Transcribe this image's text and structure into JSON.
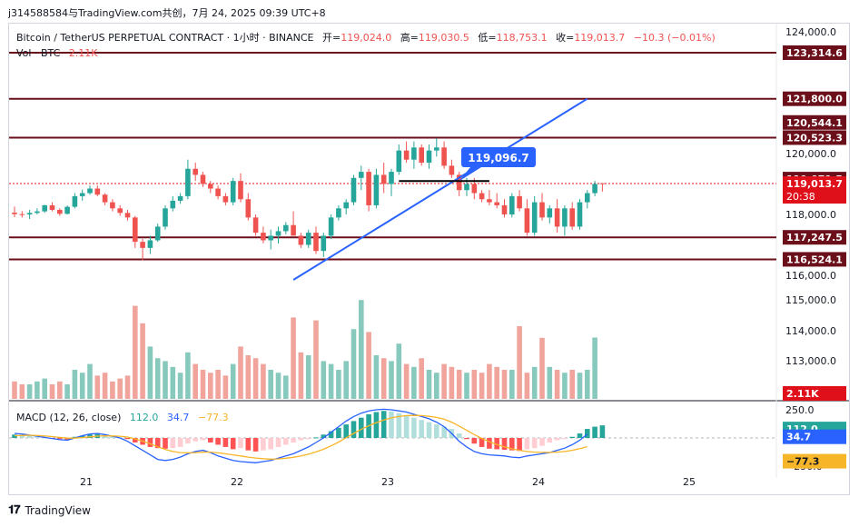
{
  "header": {
    "caption": "j314588584与TradingView.com共创，7月 24, 2025 09:39 UTC+8"
  },
  "footer": {
    "brand": "TradingView"
  },
  "legend": {
    "symbol_line": "Bitcoin / TetherUS PERPETUAL CONTRACT · 1小时 · BINANCE",
    "open_label": "开=",
    "open_value": "119,024.0",
    "high_label": "高=",
    "high_value": "119,030.5",
    "low_label": "低=",
    "low_value": "118,753.1",
    "close_label": "收=",
    "close_value": "119,013.7",
    "change": "−10.3 (−0.01%)",
    "vol_label": "Vol · BTC",
    "vol_value": "2.11K"
  },
  "macd_legend": {
    "label": "MACD (12, 26, close)",
    "hist_value": "112.0",
    "macd_value": "34.7",
    "signal_value": "−77.3"
  },
  "colors": {
    "up": "#26a69a",
    "down": "#ef5350",
    "vol_up": "#88c9be",
    "vol_down": "#f0a49c",
    "level_line": "#6b0f1a",
    "trend_line": "#2962ff",
    "macd_line": "#2962ff",
    "signal_line": "#f7b529",
    "last_price": "#e0101a",
    "callout": "#2962ff"
  },
  "chart_data": {
    "type": "candlestick",
    "title": "Bitcoin / TetherUS PERPETUAL CONTRACT · 1小时 · BINANCE",
    "timeframe": "1小时",
    "x_ticks": [
      "21",
      "22",
      "23",
      "24",
      "25"
    ],
    "price_axis": {
      "ticks": [
        "124,000.0",
        "120,000.0",
        "118,000.0",
        "116,000.0",
        "115,000.0",
        "114,000.0",
        "113,000.0"
      ],
      "ylim": [
        112000,
        124500
      ]
    },
    "horizontal_levels": [
      {
        "value": 123314.6,
        "label": "123,314.6"
      },
      {
        "value": 121800.0,
        "label": "121,800.0"
      },
      {
        "value": 120523.3,
        "label": "120,523.3"
      },
      {
        "value": 117247.5,
        "label": "117,247.5"
      },
      {
        "value": 116524.1,
        "label": "116,524.1"
      }
    ],
    "extra_price_labels": [
      {
        "value": 120544.1,
        "label": "120,544.1"
      },
      {
        "value": 119071.5,
        "label": "119,071.5"
      }
    ],
    "last_price": {
      "value": 119013.7,
      "label": "119,013.7",
      "countdown": "20:38"
    },
    "callout": {
      "value": 119096.7,
      "label": "119,096.7"
    },
    "trend_line": {
      "from": {
        "t": 37,
        "price": 115850
      },
      "to": {
        "t": 76,
        "price": 121800
      }
    },
    "candles_ohlc": [
      [
        118060,
        118260,
        117910,
        118010
      ],
      [
        118010,
        118110,
        117900,
        118000
      ],
      [
        118000,
        118150,
        117850,
        118050
      ],
      [
        118050,
        118200,
        118000,
        118100
      ],
      [
        118100,
        118320,
        118050,
        118300
      ],
      [
        118300,
        118400,
        118100,
        118150
      ],
      [
        118150,
        118200,
        117950,
        118020
      ],
      [
        118020,
        118300,
        118000,
        118250
      ],
      [
        118250,
        118700,
        118200,
        118600
      ],
      [
        118600,
        118820,
        118450,
        118700
      ],
      [
        118700,
        118950,
        118650,
        118850
      ],
      [
        118850,
        118950,
        118600,
        118650
      ],
      [
        118650,
        118700,
        118300,
        118400
      ],
      [
        118400,
        118500,
        118100,
        118200
      ],
      [
        118200,
        118300,
        117950,
        118050
      ],
      [
        118050,
        118150,
        117800,
        117900
      ],
      [
        117900,
        117950,
        116900,
        117100
      ],
      [
        117100,
        117200,
        116500,
        116900
      ],
      [
        116900,
        117300,
        116700,
        117150
      ],
      [
        117150,
        117700,
        117100,
        117600
      ],
      [
        117600,
        118300,
        117500,
        118200
      ],
      [
        118200,
        118600,
        118100,
        118450
      ],
      [
        118450,
        118700,
        118350,
        118600
      ],
      [
        118600,
        119800,
        118500,
        119500
      ],
      [
        119500,
        119700,
        119100,
        119300
      ],
      [
        119300,
        119400,
        118900,
        119000
      ],
      [
        119000,
        119100,
        118700,
        118850
      ],
      [
        118850,
        118950,
        118500,
        118600
      ],
      [
        118600,
        118700,
        118300,
        118400
      ],
      [
        118400,
        119200,
        118300,
        119100
      ],
      [
        119100,
        119350,
        118400,
        118500
      ],
      [
        118500,
        118700,
        117800,
        117900
      ],
      [
        117900,
        118000,
        117300,
        117400
      ],
      [
        117400,
        117600,
        117050,
        117150
      ],
      [
        117150,
        117500,
        116850,
        117300
      ],
      [
        117300,
        117600,
        117050,
        117450
      ],
      [
        117450,
        117750,
        117350,
        117650
      ],
      [
        117650,
        118100,
        117500,
        117300
      ],
      [
        117300,
        117400,
        116900,
        117000
      ],
      [
        117000,
        117500,
        116900,
        117400
      ],
      [
        117400,
        117600,
        116700,
        116800
      ],
      [
        116800,
        117400,
        116600,
        117300
      ],
      [
        117300,
        118000,
        117200,
        117900
      ],
      [
        117900,
        118300,
        117800,
        118200
      ],
      [
        118200,
        118500,
        118000,
        118400
      ],
      [
        118400,
        119300,
        118300,
        119200
      ],
      [
        119200,
        119600,
        118800,
        119400
      ],
      [
        119400,
        119500,
        118100,
        118300
      ],
      [
        118300,
        119500,
        118200,
        119300
      ],
      [
        119300,
        119700,
        118700,
        119000
      ],
      [
        119000,
        119500,
        118600,
        119400
      ],
      [
        119400,
        120300,
        119300,
        120100
      ],
      [
        120100,
        120400,
        119700,
        119800
      ],
      [
        119800,
        120400,
        119500,
        120200
      ],
      [
        120200,
        120300,
        119600,
        119700
      ],
      [
        119700,
        120300,
        119500,
        120100
      ],
      [
        120100,
        120500,
        119900,
        120200
      ],
      [
        120200,
        120400,
        119500,
        119600
      ],
      [
        119600,
        119800,
        119200,
        119300
      ],
      [
        119300,
        119400,
        118600,
        118800
      ],
      [
        118800,
        119200,
        118600,
        119000
      ],
      [
        119000,
        119200,
        118500,
        118700
      ],
      [
        118700,
        118800,
        118400,
        118500
      ],
      [
        118500,
        118800,
        118300,
        118400
      ],
      [
        118400,
        118700,
        118200,
        118300
      ],
      [
        118300,
        118500,
        117900,
        118000
      ],
      [
        118000,
        118700,
        117900,
        118600
      ],
      [
        118600,
        118800,
        118100,
        118200
      ],
      [
        118200,
        118500,
        117300,
        117400
      ],
      [
        117400,
        118600,
        117300,
        118400
      ],
      [
        118400,
        118700,
        117800,
        117900
      ],
      [
        117900,
        118300,
        117700,
        118200
      ],
      [
        118200,
        118500,
        117400,
        117600
      ],
      [
        117600,
        118300,
        117300,
        118200
      ],
      [
        118200,
        118400,
        117500,
        117600
      ],
      [
        117600,
        118500,
        117500,
        118400
      ],
      [
        118400,
        118800,
        118200,
        118700
      ],
      [
        118700,
        119100,
        118600,
        119000
      ],
      [
        119024,
        119030.5,
        118753.1,
        119013.7
      ]
    ],
    "volume": {
      "axis_value": "2.11K",
      "values": [
        0.6,
        0.5,
        0.5,
        0.6,
        0.7,
        0.5,
        0.6,
        0.5,
        1.0,
        0.9,
        1.2,
        0.8,
        0.9,
        0.6,
        0.7,
        0.8,
        3.2,
        2.6,
        1.8,
        1.4,
        1.3,
        1.1,
        0.9,
        1.6,
        1.2,
        1.0,
        0.9,
        1.0,
        0.8,
        1.2,
        1.8,
        1.5,
        1.4,
        1.2,
        1.0,
        0.9,
        0.8,
        2.8,
        1.6,
        1.5,
        2.7,
        1.3,
        1.2,
        1.0,
        1.3,
        2.4,
        3.4,
        2.3,
        1.5,
        1.4,
        1.3,
        1.9,
        1.2,
        1.1,
        1.4,
        1.0,
        0.9,
        1.2,
        1.1,
        1.0,
        0.9,
        1.0,
        0.9,
        1.2,
        1.1,
        1.0,
        1.0,
        2.5,
        0.9,
        1.1,
        2.1,
        1.1,
        1.0,
        0.9,
        1.0,
        0.9,
        1.0,
        2.11
      ]
    },
    "macd": {
      "params": "MACD (12, 26, close)",
      "axis_ticks": [
        "250.0",
        "−250.0"
      ],
      "ylim": [
        -280,
        300
      ],
      "histogram": [
        30,
        25,
        20,
        10,
        5,
        -5,
        -10,
        -15,
        10,
        20,
        30,
        35,
        30,
        20,
        5,
        -10,
        -40,
        -60,
        -80,
        -90,
        -95,
        -90,
        -80,
        -50,
        -30,
        -20,
        -40,
        -60,
        -80,
        -100,
        -90,
        -110,
        -120,
        -110,
        -100,
        -80,
        -60,
        -40,
        -20,
        -10,
        5,
        30,
        60,
        90,
        120,
        150,
        180,
        210,
        230,
        240,
        235,
        220,
        200,
        180,
        160,
        140,
        120,
        100,
        80,
        40,
        -10,
        -50,
        -80,
        -95,
        -100,
        -105,
        -110,
        -115,
        -100,
        -90,
        -70,
        -40,
        -20,
        -10,
        10,
        40,
        80,
        100,
        112
      ],
      "macd_line": [
        40,
        35,
        25,
        15,
        5,
        -5,
        -15,
        -20,
        0,
        20,
        35,
        40,
        30,
        15,
        0,
        -30,
        -70,
        -110,
        -150,
        -190,
        -200,
        -190,
        -170,
        -140,
        -120,
        -110,
        -130,
        -160,
        -180,
        -200,
        -210,
        -215,
        -220,
        -210,
        -200,
        -180,
        -160,
        -140,
        -110,
        -80,
        -40,
        0,
        50,
        100,
        150,
        190,
        220,
        240,
        250,
        255,
        250,
        240,
        230,
        210,
        190,
        170,
        140,
        100,
        40,
        -30,
        -80,
        -120,
        -140,
        -150,
        -155,
        -160,
        -170,
        -175,
        -160,
        -150,
        -140,
        -130,
        -110,
        -90,
        -60,
        -20,
        34.7
      ],
      "signal_line": [
        20,
        22,
        24,
        22,
        18,
        12,
        5,
        -2,
        -2,
        3,
        10,
        16,
        19,
        18,
        15,
        8,
        -8,
        -28,
        -52,
        -78,
        -102,
        -120,
        -130,
        -132,
        -130,
        -126,
        -126,
        -132,
        -140,
        -150,
        -160,
        -170,
        -178,
        -184,
        -188,
        -186,
        -180,
        -172,
        -160,
        -144,
        -124,
        -100,
        -70,
        -36,
        2,
        40,
        76,
        108,
        136,
        160,
        178,
        190,
        198,
        200,
        198,
        192,
        182,
        166,
        140,
        106,
        68,
        30,
        -4,
        -34,
        -58,
        -78,
        -96,
        -110,
        -120,
        -126,
        -128,
        -128,
        -126,
        -120,
        -110,
        -95,
        -77.3
      ]
    }
  }
}
